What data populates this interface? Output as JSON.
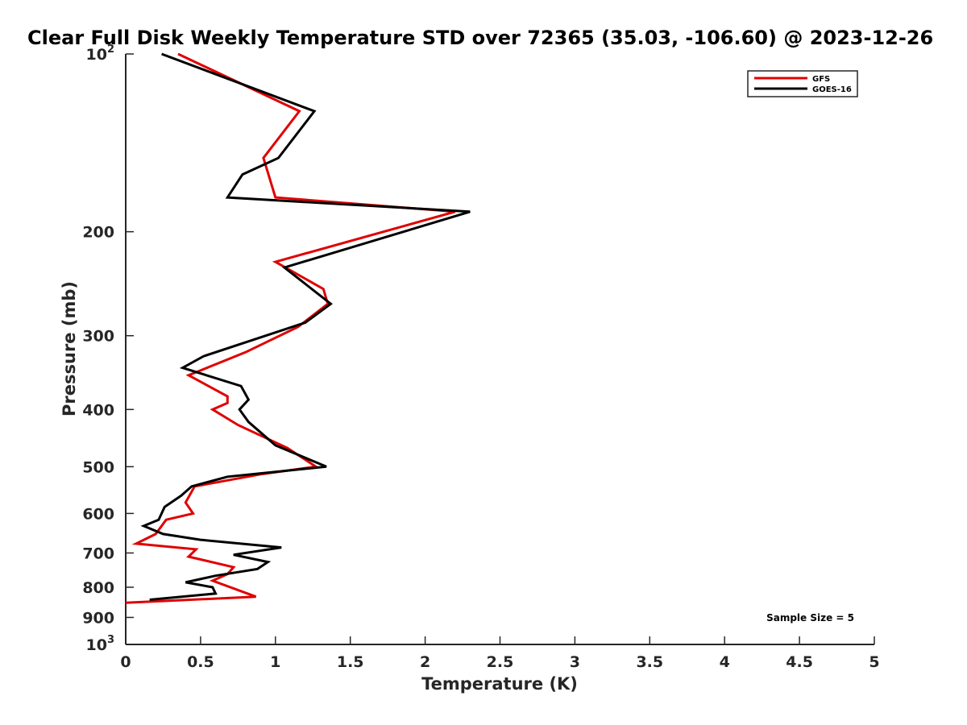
{
  "chart_data": {
    "type": "line",
    "title": "Clear Full Disk Weekly Temperature STD over 72365 (35.03, -106.60) @ 2023-12-26",
    "xlabel": "Temperature (K)",
    "ylabel": "Pressure (mb)",
    "xlim": [
      0,
      5
    ],
    "ylim": [
      100,
      1000
    ],
    "y_scale": "log",
    "y_reversed": true,
    "x_ticks": [
      "0",
      "0.5",
      "1",
      "1.5",
      "2",
      "2.5",
      "3",
      "3.5",
      "4",
      "4.5",
      "5"
    ],
    "y_ticks": [
      {
        "value": 100,
        "base": "10",
        "exp": "2"
      },
      {
        "value": 200,
        "label": "200"
      },
      {
        "value": 300,
        "label": "300"
      },
      {
        "value": 400,
        "label": "400"
      },
      {
        "value": 500,
        "label": "500"
      },
      {
        "value": 600,
        "label": "600"
      },
      {
        "value": 700,
        "label": "700"
      },
      {
        "value": 800,
        "label": "800"
      },
      {
        "value": 900,
        "label": "900"
      },
      {
        "value": 1000,
        "base": "10",
        "exp": "3"
      }
    ],
    "legend_position": "top-right",
    "grid": false,
    "series": [
      {
        "name": "GFS",
        "color": "#e00000",
        "points": [
          [
            0.35,
            100
          ],
          [
            1.16,
            125
          ],
          [
            0.92,
            150
          ],
          [
            1.0,
            175
          ],
          [
            2.2,
            185
          ],
          [
            1.0,
            225
          ],
          [
            1.32,
            250
          ],
          [
            1.35,
            265
          ],
          [
            1.15,
            290
          ],
          [
            0.8,
            320
          ],
          [
            0.42,
            350
          ],
          [
            0.68,
            380
          ],
          [
            0.68,
            390
          ],
          [
            0.58,
            400
          ],
          [
            0.75,
            425
          ],
          [
            1.08,
            465
          ],
          [
            1.27,
            500
          ],
          [
            0.9,
            515
          ],
          [
            0.46,
            540
          ],
          [
            0.4,
            575
          ],
          [
            0.45,
            600
          ],
          [
            0.27,
            615
          ],
          [
            0.2,
            650
          ],
          [
            0.07,
            675
          ],
          [
            0.47,
            690
          ],
          [
            0.42,
            710
          ],
          [
            0.72,
            740
          ],
          [
            0.68,
            760
          ],
          [
            0.58,
            780
          ],
          [
            0.87,
            830
          ],
          [
            0.0,
            850
          ]
        ]
      },
      {
        "name": "GOES-16",
        "color": "#000000",
        "points": [
          [
            0.24,
            100
          ],
          [
            1.26,
            125
          ],
          [
            1.02,
            150
          ],
          [
            0.78,
            160
          ],
          [
            0.68,
            175
          ],
          [
            2.3,
            185
          ],
          [
            1.06,
            230
          ],
          [
            1.37,
            265
          ],
          [
            1.2,
            285
          ],
          [
            0.52,
            325
          ],
          [
            0.38,
            340
          ],
          [
            0.77,
            365
          ],
          [
            0.82,
            385
          ],
          [
            0.76,
            400
          ],
          [
            0.82,
            420
          ],
          [
            1.0,
            460
          ],
          [
            1.34,
            500
          ],
          [
            0.68,
            520
          ],
          [
            0.44,
            540
          ],
          [
            0.37,
            560
          ],
          [
            0.26,
            585
          ],
          [
            0.22,
            615
          ],
          [
            0.12,
            630
          ],
          [
            0.25,
            650
          ],
          [
            0.5,
            665
          ],
          [
            1.04,
            685
          ],
          [
            0.72,
            705
          ],
          [
            0.95,
            725
          ],
          [
            0.88,
            745
          ],
          [
            0.6,
            765
          ],
          [
            0.4,
            785
          ],
          [
            0.58,
            800
          ],
          [
            0.6,
            820
          ],
          [
            0.16,
            840
          ]
        ]
      }
    ],
    "annotation": "Sample Size = 5"
  }
}
